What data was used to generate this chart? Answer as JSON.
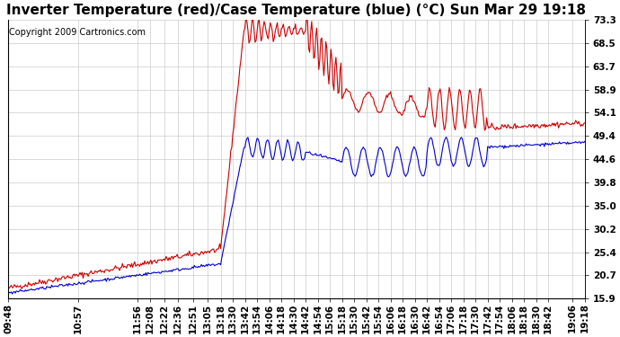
{
  "title": "Inverter Temperature (red)/Case Temperature (blue) (°C) Sun Mar 29 19:18",
  "copyright": "Copyright 2009 Cartronics.com",
  "ylabel_right_ticks": [
    15.9,
    20.7,
    25.4,
    30.2,
    35.0,
    39.8,
    44.6,
    49.4,
    54.1,
    58.9,
    63.7,
    68.5,
    73.3
  ],
  "ymin": 15.9,
  "ymax": 73.3,
  "background_color": "#ffffff",
  "grid_color": "#cccccc",
  "red_color": "#cc0000",
  "blue_color": "#0000cc",
  "title_fontsize": 11,
  "copyright_fontsize": 7,
  "tick_fontsize": 7.5,
  "x_tick_labels": [
    "09:48",
    "10:57",
    "11:56",
    "12:08",
    "12:22",
    "12:36",
    "12:51",
    "13:05",
    "13:18",
    "13:30",
    "13:42",
    "13:54",
    "14:06",
    "14:18",
    "14:30",
    "14:42",
    "14:54",
    "15:06",
    "15:18",
    "15:30",
    "15:42",
    "15:54",
    "16:06",
    "16:18",
    "16:30",
    "16:42",
    "16:54",
    "17:06",
    "17:18",
    "17:30",
    "17:42",
    "17:54",
    "18:06",
    "18:18",
    "18:30",
    "18:42",
    "19:06",
    "19:18"
  ]
}
